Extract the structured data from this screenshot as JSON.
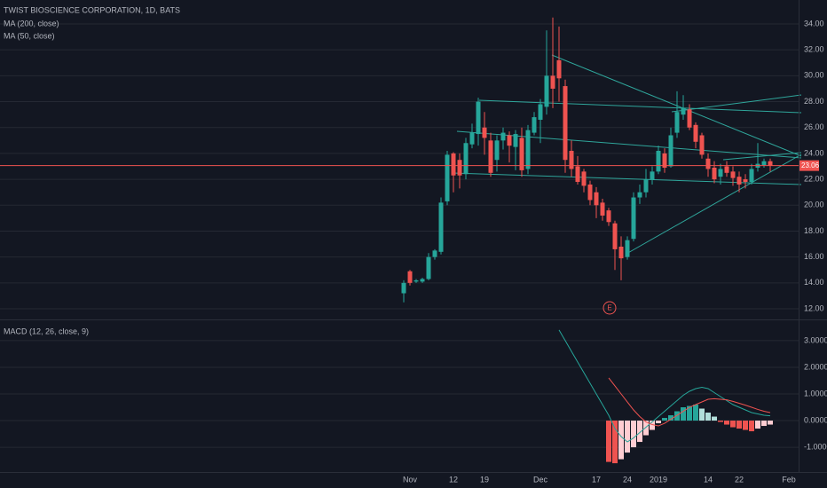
{
  "chart_data": [
    {
      "type": "candlestick",
      "title": "TWIST BIOSCIENCE CORPORATION, 1D, BATS",
      "indicators": [
        "MA (200, close)",
        "MA (50, close)"
      ],
      "open": [
        13.2,
        14.9,
        14.1,
        14.1,
        14.3,
        16.0,
        16.4,
        20.3,
        24.0,
        23.5,
        22.4,
        24.7,
        25.5,
        26.0,
        25.0,
        23.5,
        25.0,
        25.4,
        24.5,
        25.2,
        22.8,
        25.6,
        26.6,
        27.6,
        30.0,
        31.2,
        29.2,
        24.2,
        23.0,
        22.6,
        21.6,
        21.0,
        20.2,
        19.6,
        18.6,
        16.8,
        16.0,
        17.4,
        20.6,
        21.0,
        22.0,
        22.6,
        24.0,
        23.0,
        25.6,
        27.0,
        27.4,
        26.2,
        25.4,
        23.6,
        22.9,
        22.2,
        23.0,
        22.6,
        22.2,
        22.0,
        21.8,
        22.9,
        23.1,
        23.4
      ],
      "high": [
        14.2,
        15.0,
        14.3,
        14.4,
        16.3,
        16.6,
        20.6,
        24.2,
        24.1,
        24.0,
        25.2,
        26.3,
        28.3,
        27.2,
        25.6,
        25.4,
        26.0,
        25.7,
        25.8,
        26.0,
        26.2,
        27.2,
        28.2,
        33.5,
        34.5,
        33.8,
        29.7,
        25.0,
        23.8,
        22.8,
        21.9,
        21.4,
        20.5,
        19.8,
        18.8,
        17.6,
        17.6,
        21.0,
        21.6,
        22.8,
        23.0,
        24.6,
        24.4,
        26.0,
        28.8,
        28.5,
        27.8,
        26.4,
        25.6,
        24.0,
        23.4,
        23.2,
        23.4,
        23.0,
        22.6,
        22.4,
        23.2,
        24.8,
        23.6,
        23.6
      ],
      "low": [
        12.5,
        13.8,
        14.0,
        14.0,
        14.2,
        15.8,
        16.2,
        20.0,
        21.0,
        21.3,
        22.0,
        24.4,
        24.6,
        23.9,
        22.2,
        22.6,
        24.3,
        23.3,
        22.7,
        22.2,
        22.4,
        25.4,
        24.8,
        27.0,
        27.5,
        28.0,
        22.5,
        22.2,
        21.6,
        21.0,
        20.0,
        19.0,
        18.8,
        18.4,
        15.0,
        14.2,
        15.8,
        17.2,
        20.1,
        20.6,
        21.6,
        22.4,
        22.5,
        22.9,
        25.2,
        26.6,
        25.8,
        24.4,
        23.6,
        22.2,
        21.7,
        21.6,
        22.2,
        21.5,
        21.0,
        21.3,
        21.6,
        22.6,
        22.9,
        22.6
      ],
      "close": [
        14.0,
        14.0,
        14.2,
        14.3,
        16.0,
        16.5,
        20.2,
        23.9,
        22.3,
        22.3,
        24.8,
        25.6,
        28.0,
        25.2,
        22.5,
        25.0,
        25.6,
        24.6,
        25.5,
        22.7,
        25.8,
        26.8,
        27.8,
        30.0,
        29.0,
        29.8,
        23.5,
        22.8,
        21.8,
        21.5,
        20.4,
        20.0,
        19.2,
        18.7,
        16.6,
        15.9,
        17.3,
        20.6,
        21.0,
        22.0,
        22.6,
        24.2,
        22.9,
        25.4,
        27.2,
        27.5,
        26.0,
        24.9,
        23.9,
        22.8,
        22.0,
        22.8,
        22.5,
        22.1,
        21.6,
        21.8,
        22.8,
        23.2,
        23.4,
        23.06
      ],
      "up_color": "#26a69a",
      "down_color": "#ef5350",
      "ylim": [
        11.18,
        35.85
      ],
      "yticks": [
        {
          "value": 12,
          "label": "12.00"
        },
        {
          "value": 14,
          "label": "14.00"
        },
        {
          "value": 16,
          "label": "16.00"
        },
        {
          "value": 18,
          "label": "18.00"
        },
        {
          "value": 20,
          "label": "20.00"
        },
        {
          "value": 22,
          "label": "22.00"
        },
        {
          "value": 24,
          "label": "24.00"
        },
        {
          "value": 26,
          "label": "26.00"
        },
        {
          "value": 28,
          "label": "28.00"
        },
        {
          "value": 30,
          "label": "30.00"
        },
        {
          "value": 32,
          "label": "32.00"
        },
        {
          "value": 34,
          "label": "34.00"
        }
      ],
      "grid": true,
      "last_price": 23.06,
      "last_price_color": "#ef5350",
      "annotation": "E"
    },
    {
      "type": "macd",
      "title": "MACD (12, 26, close, 9)",
      "categories": [
        null,
        "Nov",
        null,
        null,
        null,
        null,
        null,
        null,
        "12",
        null,
        null,
        null,
        null,
        "19",
        null,
        null,
        null,
        null,
        null,
        null,
        null,
        null,
        "Dec",
        null,
        null,
        null,
        null,
        null,
        null,
        null,
        null,
        "17",
        null,
        null,
        null,
        null,
        "24",
        null,
        null,
        null,
        null,
        "2019",
        null,
        null,
        null,
        null,
        null,
        null,
        null,
        "14",
        null,
        null,
        null,
        null,
        "22",
        null,
        null,
        null,
        null,
        null,
        null,
        null,
        "Feb"
      ],
      "series": [
        {
          "color": "#26a69a",
          "values": [
            null,
            null,
            null,
            null,
            null,
            null,
            null,
            null,
            null,
            null,
            null,
            null,
            null,
            null,
            null,
            null,
            null,
            null,
            null,
            null,
            null,
            null,
            null,
            null,
            null,
            3.4,
            3.0,
            2.6,
            2.2,
            1.8,
            1.4,
            1.0,
            0.6,
            0.2,
            -0.3,
            -0.6,
            -0.8,
            -0.65,
            -0.45,
            -0.25,
            -0.05,
            0.15,
            0.35,
            0.55,
            0.75,
            0.95,
            1.1,
            1.2,
            1.25,
            1.2,
            1.05,
            0.9,
            0.75,
            0.6,
            0.5,
            0.4,
            0.3,
            0.25,
            0.2,
            0.18,
            null,
            null,
            null
          ]
        },
        {
          "color": "#ef5350",
          "values": [
            null,
            null,
            null,
            null,
            null,
            null,
            null,
            null,
            null,
            null,
            null,
            null,
            null,
            null,
            null,
            null,
            null,
            null,
            null,
            null,
            null,
            null,
            null,
            null,
            null,
            null,
            null,
            null,
            null,
            null,
            null,
            null,
            null,
            1.6,
            1.3,
            1.0,
            0.7,
            0.4,
            0.15,
            -0.05,
            -0.15,
            -0.2,
            -0.1,
            0.05,
            0.2,
            0.35,
            0.5,
            0.6,
            0.7,
            0.8,
            0.82,
            0.8,
            0.78,
            0.72,
            0.65,
            0.58,
            0.5,
            0.42,
            0.35,
            0.3,
            null,
            null,
            null
          ]
        }
      ],
      "histogram": {
        "values": [
          null,
          null,
          null,
          null,
          null,
          null,
          null,
          null,
          null,
          null,
          null,
          null,
          null,
          null,
          null,
          null,
          null,
          null,
          null,
          null,
          null,
          null,
          null,
          null,
          null,
          null,
          null,
          null,
          null,
          null,
          null,
          null,
          null,
          -1.55,
          -1.6,
          -1.45,
          -1.2,
          -1.0,
          -0.8,
          -0.55,
          -0.35,
          -0.1,
          0.1,
          0.2,
          0.35,
          0.5,
          0.55,
          0.6,
          0.45,
          0.3,
          0.15,
          -0.05,
          -0.15,
          -0.25,
          -0.3,
          -0.35,
          -0.4,
          -0.3,
          -0.2,
          -0.15,
          null,
          null,
          null
        ],
        "colors": {
          "rising_above": "#26a69a",
          "falling_above": "#b2dfdb",
          "falling_below": "#ef5350",
          "rising_below": "#ffcdd2"
        }
      },
      "ylim": [
        -1.93,
        3.73
      ],
      "yticks": [
        {
          "value": -1,
          "label": "-1.0000"
        },
        {
          "value": 0,
          "label": "0.0000"
        },
        {
          "value": 1,
          "label": "1.0000"
        },
        {
          "value": 2,
          "label": "2.0000"
        },
        {
          "value": 3,
          "label": "3.0000"
        }
      ],
      "grid": true
    }
  ]
}
